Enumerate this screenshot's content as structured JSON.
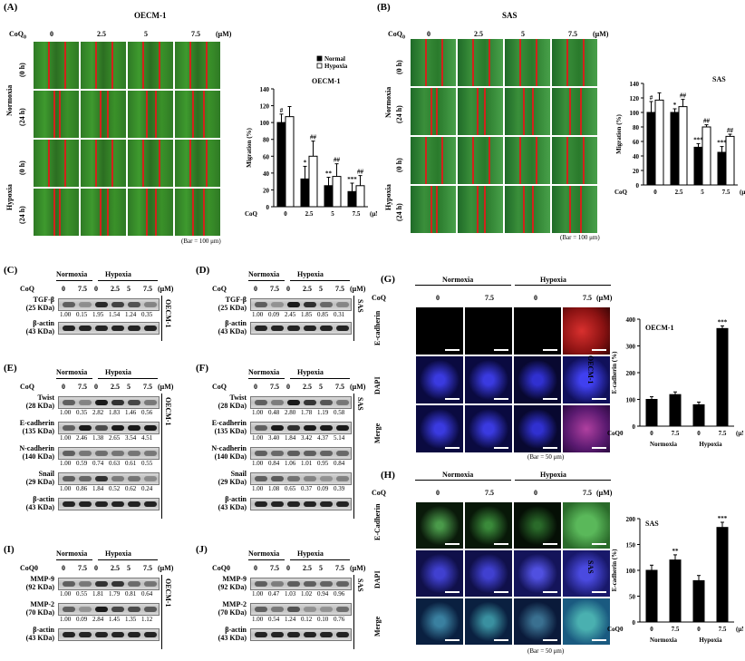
{
  "panels": {
    "A": {
      "label": "(A)",
      "cell": "OECM-1",
      "coq": "CoQ",
      "sub": "0",
      "doses": [
        "0",
        "2.5",
        "5",
        "7.5"
      ],
      "unit": "(μM)",
      "rows": [
        "Normoxia",
        "Hypoxia"
      ],
      "times": [
        "(0 h)",
        "(24 h)",
        "(0 h)",
        "(24 h)"
      ],
      "bar": "(Bar = 100 μm)"
    },
    "B": {
      "label": "(B)",
      "cell": "SAS",
      "coq": "CoQ",
      "sub": "0",
      "doses": [
        "0",
        "2.5",
        "5",
        "7.5"
      ],
      "unit": "(μM)",
      "rows": [
        "Normoxia",
        "Hypoxia"
      ],
      "times": [
        "(0 h)",
        "(24 h)",
        "(0 h)",
        "(24 h)"
      ],
      "bar": "(Bar = 100 μm)"
    },
    "C": {
      "label": "(C)",
      "cell": "OECM-1",
      "norm": "Normoxia",
      "hyp": "Hypoxia",
      "doses": [
        "0",
        "7.5",
        "0",
        "2.5",
        "5",
        "7.5"
      ],
      "unit": "(μM)",
      "blots": [
        {
          "name": "TGF-β",
          "size": "(25 KDa)",
          "vals": [
            "1.00",
            "0.15",
            "1.95",
            "1.54",
            "1.24",
            "0.35"
          ]
        },
        {
          "name": "β-actin",
          "size": "(43 KDa)",
          "vals": []
        }
      ]
    },
    "D": {
      "label": "(D)",
      "cell": "SAS",
      "norm": "Normoxia",
      "hyp": "Hypoxia",
      "doses": [
        "0",
        "7.5",
        "0",
        "2.5",
        "5",
        "7.5"
      ],
      "unit": "(μM)",
      "blots": [
        {
          "name": "TGF-β",
          "size": "(25 KDa)",
          "vals": [
            "1.00",
            "0.09",
            "2.45",
            "1.85",
            "0.85",
            "0.31"
          ]
        },
        {
          "name": "β-actin",
          "size": "(43 KDa)",
          "vals": []
        }
      ]
    },
    "E": {
      "label": "(E)",
      "cell": "OECM-1",
      "norm": "Normoxia",
      "hyp": "Hypoxia",
      "doses": [
        "0",
        "7.5",
        "0",
        "2.5",
        "5",
        "7.5"
      ],
      "unit": "(μM)",
      "blots": [
        {
          "name": "Twist",
          "size": "(28 KDa)",
          "vals": [
            "1.00",
            "0.35",
            "2.82",
            "1.83",
            "1.46",
            "0.56"
          ]
        },
        {
          "name": "E-cadherin",
          "size": "(135 KDa)",
          "vals": [
            "1.00",
            "2.46",
            "1.38",
            "2.65",
            "3.54",
            "4.51"
          ]
        },
        {
          "name": "N-cadherin",
          "size": "(140 KDa)",
          "vals": [
            "1.00",
            "0.59",
            "0.74",
            "0.63",
            "0.61",
            "0.55"
          ]
        },
        {
          "name": "Snail",
          "size": "(29 KDa)",
          "vals": [
            "1.00",
            "0.86",
            "1.84",
            "0.52",
            "0.62",
            "0.24"
          ]
        },
        {
          "name": "β-actin",
          "size": "(43 KDa)",
          "vals": []
        }
      ]
    },
    "F": {
      "label": "(F)",
      "cell": "SAS",
      "norm": "Normoxia",
      "hyp": "Hypoxia",
      "doses": [
        "0",
        "7.5",
        "0",
        "2.5",
        "5",
        "7.5"
      ],
      "unit": "(μM)",
      "blots": [
        {
          "name": "Twist",
          "size": "(28 KDa)",
          "vals": [
            "1.00",
            "0.48",
            "2.80",
            "1.78",
            "1.19",
            "0.58"
          ]
        },
        {
          "name": "E-cadherin",
          "size": "(135 KDa)",
          "vals": [
            "1.00",
            "3.40",
            "1.84",
            "3.42",
            "4.37",
            "5.14"
          ]
        },
        {
          "name": "N-cadherin",
          "size": "(140 KDa)",
          "vals": [
            "1.00",
            "0.84",
            "1.06",
            "1.01",
            "0.95",
            "0.84"
          ]
        },
        {
          "name": "Snail",
          "size": "(29 KDa)",
          "vals": [
            "1.00",
            "1.08",
            "0.65",
            "0.37",
            "0.09",
            "0.39"
          ]
        },
        {
          "name": "β-actin",
          "size": "(43 KDa)",
          "vals": []
        }
      ]
    },
    "G": {
      "label": "(G)",
      "norm": "Normoxia",
      "hyp": "Hypoxia",
      "doses": [
        "0",
        "7.5",
        "0",
        "7.5"
      ],
      "unit": "(μM)",
      "rows": [
        "E-cadherin",
        "DAPI",
        "Merge"
      ],
      "cell": "OECM-1",
      "bar": "(Bar = 50 μm)"
    },
    "H": {
      "label": "(H)",
      "norm": "Normoxia",
      "hyp": "Hypoxia",
      "doses": [
        "0",
        "7.5",
        "0",
        "7.5"
      ],
      "unit": "(μM)",
      "rows": [
        "E-Cadherin",
        "DAPI",
        "Merge"
      ],
      "cell": "SAS",
      "bar": "(Bar = 50 μm)"
    },
    "I": {
      "label": "(I)",
      "cell": "OECM-1",
      "coq": "CoQ0",
      "norm": "Normoxia",
      "hyp": "Hypoxia",
      "doses": [
        "0",
        "7.5",
        "0",
        "2.5",
        "5",
        "7.5"
      ],
      "unit": "(μM)",
      "blots": [
        {
          "name": "MMP-9",
          "size": "(92 KDa)",
          "vals": [
            "1.00",
            "0.55",
            "1.81",
            "1.79",
            "0.81",
            "0.64"
          ]
        },
        {
          "name": "MMP-2",
          "size": "(70 KDa)",
          "vals": [
            "1.00",
            "0.09",
            "2.84",
            "1.45",
            "1.35",
            "1.12"
          ]
        },
        {
          "name": "β-actin",
          "size": "(43 KDa)",
          "vals": []
        }
      ]
    },
    "J": {
      "label": "(J)",
      "cell": "SAS",
      "coq": "CoQ0",
      "norm": "Normoxia",
      "hyp": "Hypoxia",
      "doses": [
        "0",
        "7.5",
        "0",
        "2.5",
        "5",
        "7.5"
      ],
      "unit": "(μM)",
      "blots": [
        {
          "name": "MMP-9",
          "size": "(92 KDa)",
          "vals": [
            "1.00",
            "0.47",
            "1.03",
            "1.02",
            "0.94",
            "0.96"
          ]
        },
        {
          "name": "MMP-2",
          "size": "(70 KDa)",
          "vals": [
            "1.00",
            "0.54",
            "1.24",
            "0.12",
            "0.10",
            "0.76"
          ]
        },
        {
          "name": "β-actin",
          "size": "(43 KDa)",
          "vals": []
        }
      ]
    }
  },
  "chart_data": [
    {
      "id": "A-chart",
      "type": "bar",
      "title": "OECM-1",
      "ylabel": "Migration (%)",
      "ylim": [
        0,
        140
      ],
      "yticks": [
        0,
        20,
        40,
        60,
        80,
        100,
        120,
        140
      ],
      "categories": [
        "0",
        "2.5",
        "5",
        "7.5"
      ],
      "xprefix": "CoQ",
      "xunit": "(μM)",
      "series": [
        {
          "name": "Normal",
          "color": "#000000",
          "values": [
            100,
            33,
            25,
            18
          ],
          "err": [
            10,
            15,
            10,
            10
          ]
        },
        {
          "name": "Hypoxia",
          "color": "#ffffff",
          "values": [
            107,
            60,
            36,
            25
          ],
          "err": [
            12,
            18,
            15,
            12
          ]
        }
      ],
      "annotations": [
        "#",
        "##",
        "##",
        "##",
        "*",
        "**",
        "***",
        "***"
      ]
    },
    {
      "id": "B-chart",
      "type": "bar",
      "title": "SAS",
      "ylabel": "Migration (%)",
      "ylim": [
        0,
        140
      ],
      "yticks": [
        0,
        20,
        40,
        60,
        80,
        100,
        120,
        140
      ],
      "categories": [
        "0",
        "2.5",
        "5",
        "7.5"
      ],
      "xprefix": "CoQ",
      "xunit": "(μM)",
      "series": [
        {
          "name": "Normal",
          "color": "#000000",
          "values": [
            100,
            100,
            52,
            45
          ],
          "err": [
            15,
            5,
            5,
            8
          ]
        },
        {
          "name": "Hypoxia",
          "color": "#ffffff",
          "values": [
            117,
            108,
            80,
            67
          ],
          "err": [
            10,
            10,
            3,
            3
          ]
        }
      ],
      "annotations": [
        "#",
        "##",
        "##",
        "##",
        "*",
        "***",
        "***",
        "***"
      ]
    },
    {
      "id": "G-chart",
      "type": "bar",
      "title": "OECM-1",
      "ylabel": "E-cadherin (%)",
      "ylim": [
        0,
        400
      ],
      "yticks": [
        0,
        100,
        200,
        300,
        400
      ],
      "categories": [
        "0",
        "7.5",
        "0",
        "7.5"
      ],
      "groups": [
        "Normoxia",
        "Hypoxia"
      ],
      "xprefix": "CoQ0",
      "xunit": "(μM)",
      "series": [
        {
          "name": "E-cadherin",
          "color": "#000000",
          "values": [
            100,
            118,
            80,
            365
          ],
          "err": [
            10,
            10,
            10,
            10
          ]
        }
      ],
      "annotations": [
        "***"
      ]
    },
    {
      "id": "H-chart",
      "type": "bar",
      "title": "SAS",
      "ylabel": "E-cadherin (%)",
      "ylim": [
        0,
        200
      ],
      "yticks": [
        0,
        50,
        100,
        150,
        200
      ],
      "categories": [
        "0",
        "7.5",
        "0",
        "7.5"
      ],
      "groups": [
        "Normoxia",
        "Hypoxia"
      ],
      "xprefix": "CoQ0",
      "xunit": "(μM)",
      "series": [
        {
          "name": "E-cadherin",
          "color": "#000000",
          "values": [
            100,
            120,
            80,
            183
          ],
          "err": [
            10,
            10,
            10,
            10
          ]
        }
      ],
      "annotations": [
        "**",
        "***"
      ]
    }
  ],
  "legend": {
    "normal": "Normal",
    "hypoxia": "Hypoxia"
  }
}
